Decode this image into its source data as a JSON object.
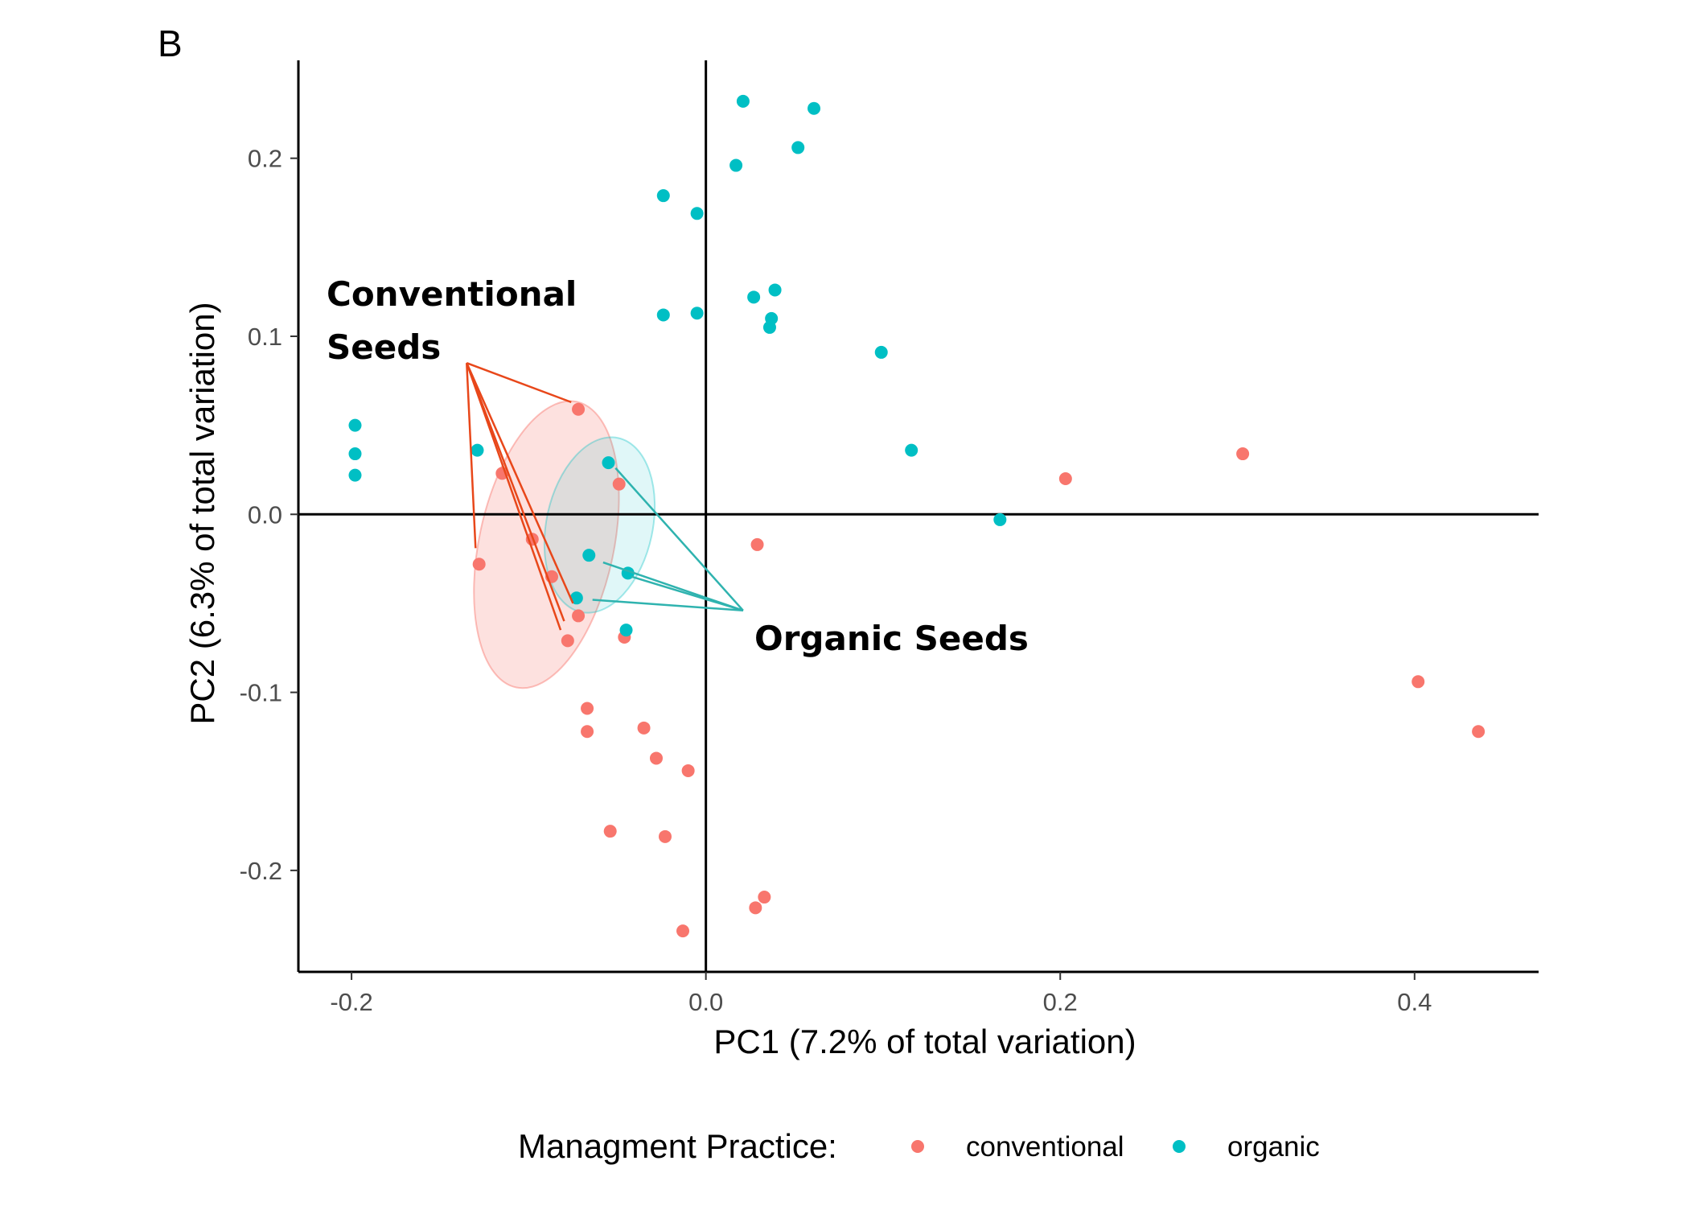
{
  "chart_data": {
    "type": "scatter",
    "panel_label": "B",
    "xlabel": "PC1 (7.2% of total variation)",
    "ylabel": "PC2 (6.3% of total variation)",
    "xlim": [
      -0.23,
      0.47
    ],
    "ylim": [
      -0.257,
      0.255
    ],
    "x_ticks": [
      {
        "value": -0.2,
        "label": "-0.2"
      },
      {
        "value": 0.0,
        "label": "0.0"
      },
      {
        "value": 0.2,
        "label": "0.2"
      },
      {
        "value": 0.4,
        "label": "0.4"
      }
    ],
    "y_ticks": [
      {
        "value": 0.2,
        "label": "0.2"
      },
      {
        "value": 0.1,
        "label": "0.1"
      },
      {
        "value": 0.0,
        "label": "0.0"
      },
      {
        "value": -0.1,
        "label": "-0.1"
      },
      {
        "value": -0.2,
        "label": "-0.2"
      }
    ],
    "reference_lines": {
      "x": 0,
      "y": 0
    },
    "legend": {
      "title": "Managment Practice:",
      "position": "bottom"
    },
    "series": [
      {
        "name": "conventional",
        "color": "#F8766D",
        "points": [
          {
            "x": -0.072,
            "y": 0.059
          },
          {
            "x": -0.115,
            "y": 0.023
          },
          {
            "x": -0.049,
            "y": 0.017
          },
          {
            "x": -0.128,
            "y": -0.028
          },
          {
            "x": -0.098,
            "y": -0.014
          },
          {
            "x": -0.087,
            "y": -0.035
          },
          {
            "x": -0.072,
            "y": -0.057
          },
          {
            "x": -0.078,
            "y": -0.071
          },
          {
            "x": -0.046,
            "y": -0.069
          },
          {
            "x": 0.029,
            "y": -0.017
          },
          {
            "x": -0.067,
            "y": -0.109
          },
          {
            "x": -0.067,
            "y": -0.122
          },
          {
            "x": -0.035,
            "y": -0.12
          },
          {
            "x": -0.028,
            "y": -0.137
          },
          {
            "x": -0.01,
            "y": -0.144
          },
          {
            "x": -0.054,
            "y": -0.178
          },
          {
            "x": -0.023,
            "y": -0.181
          },
          {
            "x": 0.033,
            "y": -0.215
          },
          {
            "x": 0.028,
            "y": -0.221
          },
          {
            "x": -0.013,
            "y": -0.234
          },
          {
            "x": 0.203,
            "y": 0.02
          },
          {
            "x": 0.303,
            "y": 0.034
          },
          {
            "x": 0.402,
            "y": -0.094
          },
          {
            "x": 0.436,
            "y": -0.122
          }
        ]
      },
      {
        "name": "organic",
        "color": "#00BFC4",
        "points": [
          {
            "x": 0.021,
            "y": 0.232
          },
          {
            "x": 0.061,
            "y": 0.228
          },
          {
            "x": 0.052,
            "y": 0.206
          },
          {
            "x": 0.017,
            "y": 0.196
          },
          {
            "x": -0.024,
            "y": 0.179
          },
          {
            "x": -0.005,
            "y": 0.169
          },
          {
            "x": 0.027,
            "y": 0.122
          },
          {
            "x": 0.039,
            "y": 0.126
          },
          {
            "x": 0.037,
            "y": 0.11
          },
          {
            "x": 0.036,
            "y": 0.105
          },
          {
            "x": -0.024,
            "y": 0.112
          },
          {
            "x": -0.005,
            "y": 0.113
          },
          {
            "x": 0.099,
            "y": 0.091
          },
          {
            "x": 0.116,
            "y": 0.036
          },
          {
            "x": 0.166,
            "y": -0.003
          },
          {
            "x": -0.198,
            "y": 0.05
          },
          {
            "x": -0.198,
            "y": 0.034
          },
          {
            "x": -0.198,
            "y": 0.022
          },
          {
            "x": -0.129,
            "y": 0.036
          },
          {
            "x": -0.055,
            "y": 0.029
          },
          {
            "x": -0.066,
            "y": -0.023
          },
          {
            "x": -0.044,
            "y": -0.033
          },
          {
            "x": -0.073,
            "y": -0.047
          },
          {
            "x": -0.045,
            "y": -0.065
          }
        ]
      }
    ],
    "ellipses": [
      {
        "group": "conventional",
        "cx": -0.09,
        "cy": -0.017,
        "rx": 0.038,
        "ry": 0.082,
        "angle": 12
      },
      {
        "group": "organic",
        "cx": -0.06,
        "cy": -0.006,
        "rx": 0.03,
        "ry": 0.05,
        "angle": 12
      }
    ],
    "annotations": [
      {
        "id": "conventional",
        "lines": [
          "Conventional",
          "Seeds"
        ],
        "color": "#E8471A",
        "anchor": {
          "x": -0.135,
          "y": 0.085
        },
        "targets": [
          {
            "x": -0.076,
            "y": 0.063
          },
          {
            "x": -0.13,
            "y": -0.019
          },
          {
            "x": -0.082,
            "y": -0.065
          },
          {
            "x": -0.08,
            "y": -0.06
          },
          {
            "x": -0.075,
            "y": -0.05
          }
        ]
      },
      {
        "id": "organic",
        "lines": [
          "Organic Seeds"
        ],
        "color": "#2FB3AF",
        "anchor": {
          "x": 0.021,
          "y": -0.054
        },
        "targets": [
          {
            "x": -0.051,
            "y": 0.026
          },
          {
            "x": -0.058,
            "y": -0.027
          },
          {
            "x": -0.042,
            "y": -0.035
          },
          {
            "x": -0.064,
            "y": -0.048
          }
        ]
      }
    ]
  }
}
